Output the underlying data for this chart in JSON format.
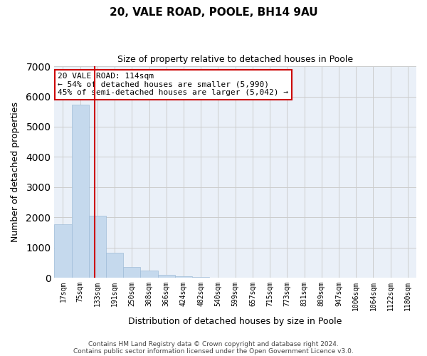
{
  "title_line1": "20, VALE ROAD, POOLE, BH14 9AU",
  "title_line2": "Size of property relative to detached houses in Poole",
  "xlabel": "Distribution of detached houses by size in Poole",
  "ylabel": "Number of detached properties",
  "bar_labels": [
    "17sqm",
    "75sqm",
    "133sqm",
    "191sqm",
    "250sqm",
    "308sqm",
    "366sqm",
    "424sqm",
    "482sqm",
    "540sqm",
    "599sqm",
    "657sqm",
    "715sqm",
    "773sqm",
    "831sqm",
    "889sqm",
    "947sqm",
    "1006sqm",
    "1064sqm",
    "1122sqm",
    "1180sqm"
  ],
  "bar_values": [
    1780,
    5740,
    2050,
    830,
    360,
    230,
    100,
    60,
    30,
    10,
    5,
    0,
    0,
    0,
    0,
    0,
    0,
    0,
    0,
    0,
    0
  ],
  "bar_color": "#c5d9ed",
  "bar_edge_color": "#a0bcd8",
  "grid_color": "#cccccc",
  "bg_color": "#eaf0f8",
  "vline_x": 1.85,
  "vline_color": "#cc0000",
  "annotation_text": "20 VALE ROAD: 114sqm\n← 54% of detached houses are smaller (5,990)\n45% of semi-detached houses are larger (5,042) →",
  "annotation_box_color": "#ffffff",
  "annotation_box_edge": "#cc0000",
  "ylim": [
    0,
    7000
  ],
  "yticks": [
    0,
    1000,
    2000,
    3000,
    4000,
    5000,
    6000,
    7000
  ],
  "footer_line1": "Contains HM Land Registry data © Crown copyright and database right 2024.",
  "footer_line2": "Contains public sector information licensed under the Open Government Licence v3.0."
}
